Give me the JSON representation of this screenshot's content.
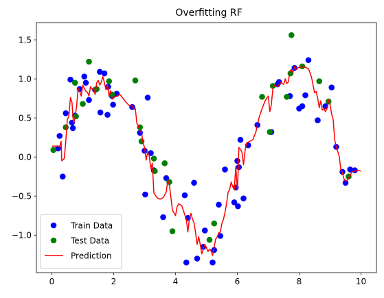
{
  "chart_data": {
    "type": "scatter",
    "title": "Overfitting RF",
    "xlabel": "",
    "ylabel": "",
    "xlim": [
      -0.5,
      10.5
    ],
    "ylim": [
      -1.48,
      1.72
    ],
    "xticks": [
      0,
      2,
      4,
      6,
      8,
      10
    ],
    "yticks": [
      -1.0,
      -0.5,
      0.0,
      0.5,
      1.0,
      1.5
    ],
    "xtick_labels": [
      "0",
      "2",
      "4",
      "6",
      "8",
      "10"
    ],
    "ytick_labels": [
      "−1.0",
      "−0.5",
      "0.0",
      "0.5",
      "1.0",
      "1.5"
    ],
    "grid": false,
    "legend_position": "lower-left",
    "series": [
      {
        "name": "Train Data",
        "kind": "scatter",
        "color": "#0000ff",
        "points": [
          [
            0.2,
            0.11
          ],
          [
            0.25,
            0.27
          ],
          [
            0.35,
            -0.25
          ],
          [
            0.45,
            0.56
          ],
          [
            0.6,
            0.99
          ],
          [
            0.65,
            0.44
          ],
          [
            0.68,
            0.37
          ],
          [
            0.75,
            0.53
          ],
          [
            0.9,
            0.87
          ],
          [
            1.05,
            1.03
          ],
          [
            1.1,
            0.95
          ],
          [
            1.2,
            0.73
          ],
          [
            1.4,
            0.86
          ],
          [
            1.55,
            1.09
          ],
          [
            1.57,
            0.57
          ],
          [
            1.7,
            1.07
          ],
          [
            1.8,
            0.54
          ],
          [
            1.82,
            0.9
          ],
          [
            1.95,
            0.78
          ],
          [
            1.98,
            0.67
          ],
          [
            2.1,
            0.81
          ],
          [
            2.6,
            0.64
          ],
          [
            2.85,
            0.31
          ],
          [
            3.0,
            0.08
          ],
          [
            3.02,
            -0.48
          ],
          [
            3.1,
            0.76
          ],
          [
            3.2,
            0.05
          ],
          [
            3.3,
            -0.17
          ],
          [
            3.6,
            -0.77
          ],
          [
            3.7,
            -0.27
          ],
          [
            4.3,
            -0.49
          ],
          [
            4.35,
            -1.35
          ],
          [
            4.4,
            -0.78
          ],
          [
            4.6,
            -0.33
          ],
          [
            4.7,
            -1.3
          ],
          [
            4.9,
            -1.15
          ],
          [
            4.95,
            -0.94
          ],
          [
            5.2,
            -1.35
          ],
          [
            5.25,
            -1.19
          ],
          [
            5.4,
            -0.61
          ],
          [
            5.45,
            -1.01
          ],
          [
            5.6,
            -0.16
          ],
          [
            5.9,
            -0.58
          ],
          [
            5.95,
            -0.39
          ],
          [
            6.0,
            -0.05
          ],
          [
            6.02,
            -0.63
          ],
          [
            6.05,
            -0.13
          ],
          [
            6.1,
            0.22
          ],
          [
            6.2,
            -0.53
          ],
          [
            6.35,
            0.15
          ],
          [
            6.65,
            0.41
          ],
          [
            7.1,
            0.32
          ],
          [
            7.3,
            0.93
          ],
          [
            7.35,
            0.96
          ],
          [
            7.7,
            0.78
          ],
          [
            7.85,
            1.14
          ],
          [
            8.0,
            0.62
          ],
          [
            8.1,
            0.65
          ],
          [
            8.2,
            0.79
          ],
          [
            8.3,
            1.24
          ],
          [
            8.6,
            0.47
          ],
          [
            8.85,
            0.65
          ],
          [
            9.05,
            0.89
          ],
          [
            9.2,
            0.13
          ],
          [
            9.4,
            -0.19
          ],
          [
            9.5,
            -0.33
          ],
          [
            9.65,
            -0.16
          ],
          [
            9.8,
            -0.17
          ]
        ]
      },
      {
        "name": "Test Data",
        "kind": "scatter",
        "color": "#008000",
        "points": [
          [
            0.05,
            0.09
          ],
          [
            0.45,
            0.38
          ],
          [
            0.75,
            0.95
          ],
          [
            0.78,
            0.52
          ],
          [
            1.0,
            0.68
          ],
          [
            1.2,
            1.22
          ],
          [
            1.45,
            0.87
          ],
          [
            1.85,
            0.97
          ],
          [
            1.95,
            0.8
          ],
          [
            2.7,
            0.98
          ],
          [
            2.85,
            0.38
          ],
          [
            2.9,
            0.2
          ],
          [
            3.3,
            -0.02
          ],
          [
            3.33,
            -0.18
          ],
          [
            3.65,
            -0.08
          ],
          [
            3.8,
            -0.32
          ],
          [
            3.9,
            -0.95
          ],
          [
            5.1,
            -1.06
          ],
          [
            5.25,
            -0.85
          ],
          [
            6.8,
            0.77
          ],
          [
            7.05,
            0.32
          ],
          [
            7.15,
            0.91
          ],
          [
            7.6,
            0.77
          ],
          [
            7.75,
            1.56
          ],
          [
            7.72,
            1.07
          ],
          [
            8.1,
            1.16
          ],
          [
            8.65,
            0.97
          ],
          [
            8.95,
            0.71
          ],
          [
            9.6,
            -0.25
          ]
        ]
      },
      {
        "name": "Prediction",
        "kind": "line",
        "color": "#ff0000",
        "points": [
          [
            0.0,
            0.14
          ],
          [
            0.2,
            0.14
          ],
          [
            0.25,
            0.13
          ],
          [
            0.3,
            0.2
          ],
          [
            0.32,
            -0.05
          ],
          [
            0.4,
            -0.02
          ],
          [
            0.45,
            0.2
          ],
          [
            0.5,
            0.48
          ],
          [
            0.55,
            0.52
          ],
          [
            0.6,
            0.76
          ],
          [
            0.65,
            0.7
          ],
          [
            0.7,
            0.42
          ],
          [
            0.75,
            0.5
          ],
          [
            0.8,
            0.65
          ],
          [
            0.85,
            0.88
          ],
          [
            0.9,
            0.84
          ],
          [
            0.95,
            0.78
          ],
          [
            1.0,
            0.92
          ],
          [
            1.05,
            0.88
          ],
          [
            1.1,
            0.84
          ],
          [
            1.15,
            0.83
          ],
          [
            1.2,
            0.78
          ],
          [
            1.25,
            0.9
          ],
          [
            1.3,
            0.87
          ],
          [
            1.35,
            0.88
          ],
          [
            1.4,
            0.8
          ],
          [
            1.45,
            0.95
          ],
          [
            1.5,
            0.98
          ],
          [
            1.55,
            0.92
          ],
          [
            1.6,
            0.96
          ],
          [
            1.65,
            1.03
          ],
          [
            1.7,
            0.95
          ],
          [
            1.75,
            0.86
          ],
          [
            1.8,
            0.93
          ],
          [
            1.85,
            0.78
          ],
          [
            1.9,
            0.85
          ],
          [
            1.95,
            0.74
          ],
          [
            2.0,
            0.76
          ],
          [
            2.1,
            0.78
          ],
          [
            2.2,
            0.8
          ],
          [
            2.3,
            0.75
          ],
          [
            2.4,
            0.7
          ],
          [
            2.5,
            0.66
          ],
          [
            2.6,
            0.66
          ],
          [
            2.65,
            0.61
          ],
          [
            2.7,
            0.62
          ],
          [
            2.75,
            0.43
          ],
          [
            2.8,
            0.4
          ],
          [
            2.85,
            0.33
          ],
          [
            2.9,
            0.32
          ],
          [
            2.95,
            0.18
          ],
          [
            3.0,
            0.12
          ],
          [
            3.05,
            -0.04
          ],
          [
            3.1,
            0.06
          ],
          [
            3.15,
            0.02
          ],
          [
            3.2,
            -0.15
          ],
          [
            3.25,
            -0.08
          ],
          [
            3.3,
            -0.46
          ],
          [
            3.35,
            -0.49
          ],
          [
            3.4,
            -0.52
          ],
          [
            3.5,
            -0.54
          ],
          [
            3.6,
            -0.52
          ],
          [
            3.7,
            -0.45
          ],
          [
            3.75,
            -0.3
          ],
          [
            3.8,
            -0.35
          ],
          [
            3.9,
            -0.68
          ],
          [
            4.0,
            -0.75
          ],
          [
            4.05,
            -0.64
          ],
          [
            4.1,
            -0.6
          ],
          [
            4.2,
            -0.62
          ],
          [
            4.3,
            -0.74
          ],
          [
            4.35,
            -0.8
          ],
          [
            4.4,
            -0.96
          ],
          [
            4.45,
            -0.79
          ],
          [
            4.5,
            -0.72
          ],
          [
            4.55,
            -0.8
          ],
          [
            4.6,
            -0.84
          ],
          [
            4.65,
            -0.97
          ],
          [
            4.7,
            -1.12
          ],
          [
            4.75,
            -1.02
          ],
          [
            4.8,
            -1.12
          ],
          [
            4.85,
            -1.24
          ],
          [
            4.9,
            -1.18
          ],
          [
            4.95,
            -1.12
          ],
          [
            5.0,
            -1.16
          ],
          [
            5.05,
            -1.21
          ],
          [
            5.1,
            -1.18
          ],
          [
            5.15,
            -1.2
          ],
          [
            5.2,
            -1.26
          ],
          [
            5.25,
            -1.15
          ],
          [
            5.3,
            -1.05
          ],
          [
            5.35,
            -1.02
          ],
          [
            5.4,
            -0.97
          ],
          [
            5.45,
            -0.96
          ],
          [
            5.5,
            -0.85
          ],
          [
            5.55,
            -0.8
          ],
          [
            5.6,
            -0.71
          ],
          [
            5.65,
            -0.6
          ],
          [
            5.7,
            -0.45
          ],
          [
            5.75,
            -0.42
          ],
          [
            5.8,
            -0.32
          ],
          [
            5.85,
            -0.38
          ],
          [
            5.9,
            -0.42
          ],
          [
            5.95,
            -0.12
          ],
          [
            6.0,
            -0.42
          ],
          [
            6.02,
            -0.25
          ],
          [
            6.05,
            0.12
          ],
          [
            6.1,
            0.1
          ],
          [
            6.15,
            0.06
          ],
          [
            6.2,
            -0.1
          ],
          [
            6.25,
            0.08
          ],
          [
            6.3,
            0.18
          ],
          [
            6.4,
            0.2
          ],
          [
            6.5,
            0.22
          ],
          [
            6.6,
            0.32
          ],
          [
            6.7,
            0.5
          ],
          [
            6.8,
            0.62
          ],
          [
            6.9,
            0.72
          ],
          [
            7.0,
            0.78
          ],
          [
            7.05,
            0.58
          ],
          [
            7.1,
            0.67
          ],
          [
            7.15,
            0.88
          ],
          [
            7.2,
            0.92
          ],
          [
            7.3,
            0.9
          ],
          [
            7.4,
            0.95
          ],
          [
            7.5,
            0.93
          ],
          [
            7.55,
            1.0
          ],
          [
            7.6,
            0.94
          ],
          [
            7.65,
            0.96
          ],
          [
            7.7,
            1.1
          ],
          [
            7.75,
            1.12
          ],
          [
            7.8,
            1.08
          ],
          [
            7.85,
            1.16
          ],
          [
            7.9,
            1.12
          ],
          [
            8.0,
            1.15
          ],
          [
            8.1,
            1.15
          ],
          [
            8.2,
            1.15
          ],
          [
            8.3,
            1.13
          ],
          [
            8.35,
            1.08
          ],
          [
            8.4,
            1.02
          ],
          [
            8.45,
            0.92
          ],
          [
            8.5,
            0.82
          ],
          [
            8.55,
            0.84
          ],
          [
            8.6,
            0.75
          ],
          [
            8.65,
            0.63
          ],
          [
            8.7,
            0.72
          ],
          [
            8.75,
            0.6
          ],
          [
            8.8,
            0.62
          ],
          [
            8.85,
            0.58
          ],
          [
            8.9,
            0.62
          ],
          [
            8.95,
            0.73
          ],
          [
            9.0,
            0.67
          ],
          [
            9.05,
            0.55
          ],
          [
            9.1,
            0.48
          ],
          [
            9.15,
            0.22
          ],
          [
            9.2,
            0.13
          ],
          [
            9.25,
            0.07
          ],
          [
            9.3,
            0.0
          ],
          [
            9.35,
            -0.17
          ],
          [
            9.4,
            -0.2
          ],
          [
            9.45,
            -0.28
          ],
          [
            9.5,
            -0.31
          ],
          [
            9.55,
            -0.3
          ],
          [
            9.6,
            -0.26
          ],
          [
            9.65,
            -0.24
          ],
          [
            9.7,
            -0.19
          ],
          [
            9.8,
            -0.18
          ],
          [
            9.9,
            -0.17
          ],
          [
            10.0,
            -0.18
          ]
        ]
      }
    ]
  }
}
